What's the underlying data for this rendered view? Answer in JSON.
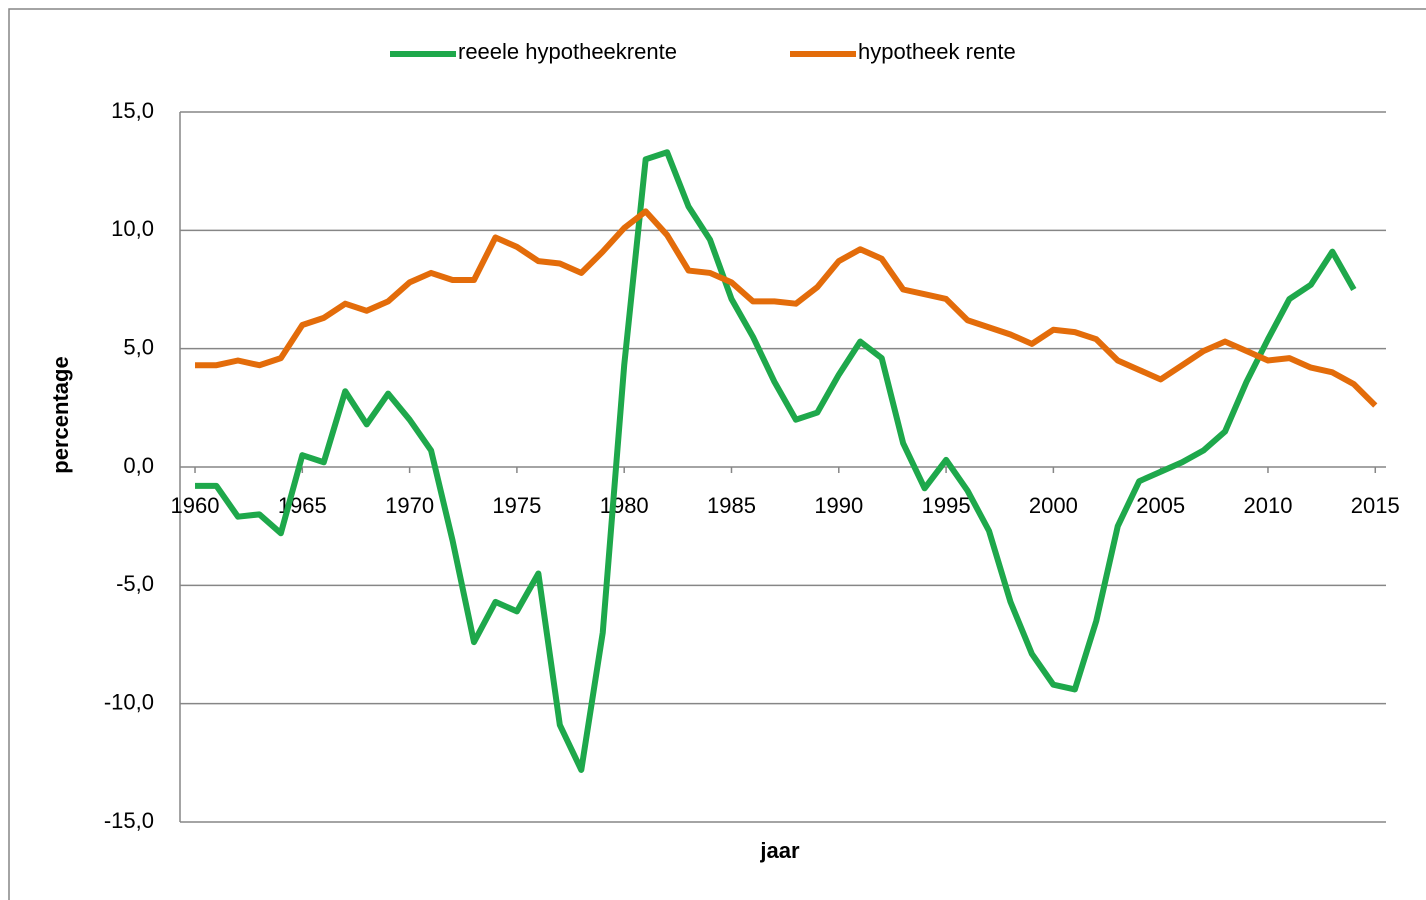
{
  "chart_data": {
    "type": "line",
    "xlabel": "jaar",
    "ylabel": "percentage",
    "x": [
      1960,
      1961,
      1962,
      1963,
      1964,
      1965,
      1966,
      1967,
      1968,
      1969,
      1970,
      1971,
      1972,
      1973,
      1974,
      1975,
      1976,
      1977,
      1978,
      1979,
      1980,
      1981,
      1982,
      1983,
      1984,
      1985,
      1986,
      1987,
      1988,
      1989,
      1990,
      1991,
      1992,
      1993,
      1994,
      1995,
      1996,
      1997,
      1998,
      1999,
      2000,
      2001,
      2002,
      2003,
      2004,
      2005,
      2006,
      2007,
      2008,
      2009,
      2010,
      2011,
      2012,
      2013,
      2014,
      2015
    ],
    "series": [
      {
        "name": "reeele hypotheekrente",
        "color": "#1ea84b",
        "values": [
          -0.8,
          -0.8,
          -2.1,
          -2.0,
          -2.8,
          0.5,
          0.2,
          3.2,
          1.8,
          3.1,
          2.0,
          0.7,
          -3.1,
          -7.4,
          -5.7,
          -6.1,
          -4.5,
          -10.9,
          -12.8,
          -7.0,
          4.3,
          13.0,
          13.3,
          11.0,
          9.6,
          7.1,
          5.5,
          3.6,
          2.0,
          2.3,
          3.9,
          5.3,
          4.6,
          1.0,
          -0.9,
          0.3,
          -1.0,
          -2.7,
          -5.7,
          -7.9,
          -9.2,
          -9.4,
          -6.5,
          -2.5,
          -0.6,
          -0.2,
          0.2,
          0.7,
          1.5,
          3.6,
          5.4,
          7.1,
          7.7,
          9.1,
          7.5,
          null
        ]
      },
      {
        "name": "hypotheek rente",
        "color": "#e36c0a",
        "values": [
          4.3,
          4.3,
          4.5,
          4.3,
          4.6,
          6.0,
          6.3,
          6.9,
          6.6,
          7.0,
          7.8,
          8.2,
          7.9,
          7.9,
          9.7,
          9.3,
          8.7,
          8.6,
          8.2,
          9.1,
          10.1,
          10.8,
          9.8,
          8.3,
          8.2,
          7.8,
          7.0,
          7.0,
          6.9,
          7.6,
          8.7,
          9.2,
          8.8,
          7.5,
          7.3,
          7.1,
          6.2,
          5.9,
          5.6,
          5.2,
          5.8,
          5.7,
          5.4,
          4.5,
          4.1,
          3.7,
          4.3,
          4.9,
          5.3,
          4.9,
          4.5,
          4.6,
          4.2,
          4.0,
          3.5,
          2.6
        ]
      }
    ],
    "xlim": [
      1959.3,
      2015.5
    ],
    "xticks": [
      1960,
      1965,
      1970,
      1975,
      1980,
      1985,
      1990,
      1995,
      2000,
      2005,
      2010,
      2015
    ],
    "ylim": [
      -15,
      15
    ],
    "yticks": [
      {
        "value": -15,
        "label": "-15,0"
      },
      {
        "value": -10,
        "label": "-10,0"
      },
      {
        "value": -5,
        "label": "-5,0"
      },
      {
        "value": 0,
        "label": "0,0"
      },
      {
        "value": 5,
        "label": "5,0"
      },
      {
        "value": 10,
        "label": "10,0"
      },
      {
        "value": 15,
        "label": "15,0"
      }
    ],
    "grid": true,
    "legend": "top"
  }
}
